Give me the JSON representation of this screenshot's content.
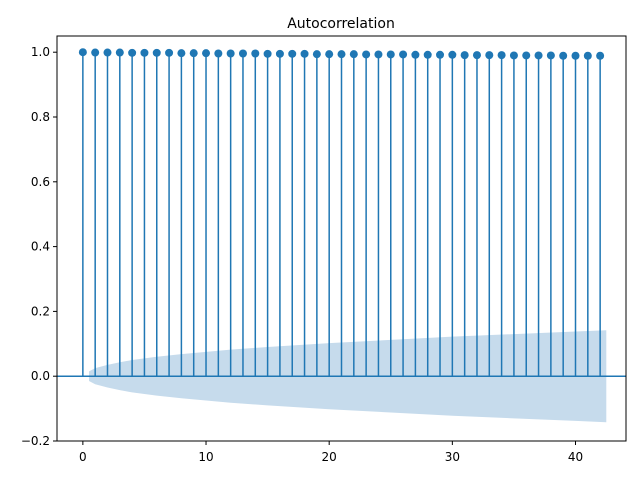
{
  "chart_data": {
    "type": "stem",
    "title": "Autocorrelation",
    "xlabel": "",
    "ylabel": "",
    "xlim": [
      -2.1,
      44.1
    ],
    "ylim": [
      -0.2,
      1.05
    ],
    "xticks": [
      0,
      10,
      20,
      30,
      40
    ],
    "xtick_labels": [
      "0",
      "10",
      "20",
      "30",
      "40"
    ],
    "yticks": [
      -0.2,
      0.0,
      0.2,
      0.4,
      0.6,
      0.8,
      1.0
    ],
    "ytick_labels": [
      "−0.2",
      "0.0",
      "0.2",
      "0.4",
      "0.6",
      "0.8",
      "1.0"
    ],
    "grid": false,
    "legend": "none",
    "colors": {
      "stem": "#1f77b4",
      "band": "#c6dbec",
      "baseline": "#1f77b4"
    },
    "lags": [
      0,
      1,
      2,
      3,
      4,
      5,
      6,
      7,
      8,
      9,
      10,
      11,
      12,
      13,
      14,
      15,
      16,
      17,
      18,
      19,
      20,
      21,
      22,
      23,
      24,
      25,
      26,
      27,
      28,
      29,
      30,
      31,
      32,
      33,
      34,
      35,
      36,
      37,
      38,
      39,
      40,
      41,
      42
    ],
    "values": [
      1.0,
      0.999,
      0.999,
      0.999,
      0.998,
      0.998,
      0.998,
      0.998,
      0.997,
      0.997,
      0.997,
      0.996,
      0.996,
      0.996,
      0.996,
      0.995,
      0.995,
      0.995,
      0.995,
      0.994,
      0.994,
      0.994,
      0.994,
      0.993,
      0.993,
      0.993,
      0.993,
      0.992,
      0.992,
      0.992,
      0.992,
      0.991,
      0.991,
      0.991,
      0.991,
      0.99,
      0.99,
      0.99,
      0.99,
      0.989,
      0.989,
      0.989,
      0.989
    ],
    "confidence_band": {
      "lags": [
        0.5,
        1,
        2,
        3,
        4,
        5,
        6,
        8,
        10,
        12,
        15,
        20,
        25,
        30,
        35,
        40,
        42.5
      ],
      "upper": [
        0.015,
        0.025,
        0.035,
        0.043,
        0.05,
        0.055,
        0.06,
        0.068,
        0.075,
        0.082,
        0.09,
        0.102,
        0.112,
        0.122,
        0.13,
        0.138,
        0.142
      ],
      "lower": [
        -0.015,
        -0.025,
        -0.035,
        -0.043,
        -0.05,
        -0.055,
        -0.06,
        -0.068,
        -0.075,
        -0.082,
        -0.09,
        -0.102,
        -0.112,
        -0.122,
        -0.13,
        -0.138,
        -0.142
      ]
    }
  }
}
